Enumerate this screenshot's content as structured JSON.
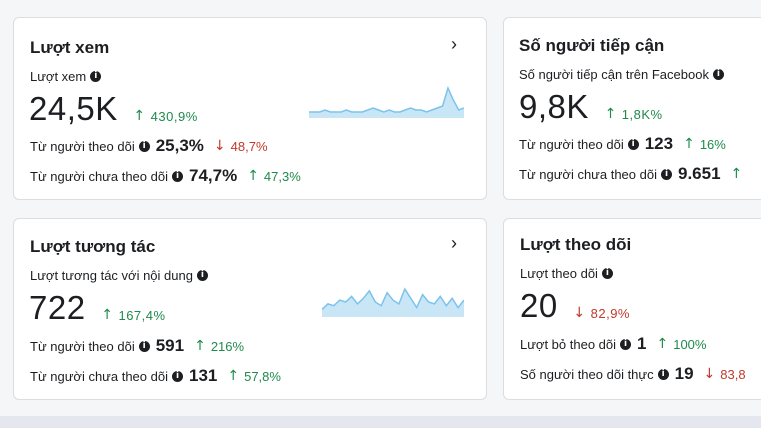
{
  "colors": {
    "up": "#1f8a4c",
    "down": "#c0392b",
    "spark_fill": "#c9e6f7",
    "spark_line": "#7cc3ea"
  },
  "cards": {
    "views": {
      "title": "Lượt xem",
      "metric_label": "Lượt xem",
      "value": "24,5K",
      "change": {
        "dir": "up",
        "text": "430,9%"
      },
      "followers": {
        "label": "Từ người theo dõi",
        "value": "25,3%",
        "dir": "down",
        "change": "48,7%"
      },
      "non_followers": {
        "label": "Từ người chưa theo dõi",
        "value": "74,7%",
        "dir": "up",
        "change": "47,3%"
      },
      "sparkline": [
        2,
        2,
        2,
        3,
        2,
        2,
        2,
        3,
        2,
        2,
        2,
        3,
        4,
        3,
        2,
        3,
        2,
        2,
        3,
        4,
        3,
        3,
        2,
        3,
        4,
        5,
        14,
        8,
        3,
        4
      ]
    },
    "reach": {
      "title": "Số người tiếp cận",
      "metric_label": "Số người tiếp cận trên Facebook",
      "value": "9,8K",
      "change": {
        "dir": "up",
        "text": "1,8K%"
      },
      "followers": {
        "label": "Từ người theo dõi",
        "value": "123",
        "dir": "up",
        "change": "16%"
      },
      "non_followers": {
        "label": "Từ người chưa theo dõi",
        "value": "9.651",
        "dir": "up",
        "change": ""
      }
    },
    "interactions": {
      "title": "Lượt tương tác",
      "metric_label": "Lượt tương tác với nội dung",
      "value": "722",
      "change": {
        "dir": "up",
        "text": "167,4%"
      },
      "followers": {
        "label": "Từ người theo dõi",
        "value": "591",
        "dir": "up",
        "change": "216%"
      },
      "non_followers": {
        "label": "Từ người chưa theo dõi",
        "value": "131",
        "dir": "up",
        "change": "57,8%"
      },
      "sparkline": [
        3,
        6,
        5,
        8,
        7,
        10,
        6,
        9,
        13,
        7,
        5,
        12,
        8,
        6,
        14,
        9,
        4,
        11,
        7,
        6,
        10,
        5,
        9,
        4,
        8
      ]
    },
    "follows": {
      "title": "Lượt theo dõi",
      "metric_label": "Lượt theo dõi",
      "value": "20",
      "change": {
        "dir": "down",
        "text": "82,9%"
      },
      "unfollows": {
        "label": "Lượt bỏ theo dõi",
        "value": "1",
        "dir": "up",
        "change": "100%"
      },
      "net": {
        "label": "Số người theo dõi thực",
        "value": "19",
        "dir": "down",
        "change": "83,8"
      }
    }
  }
}
